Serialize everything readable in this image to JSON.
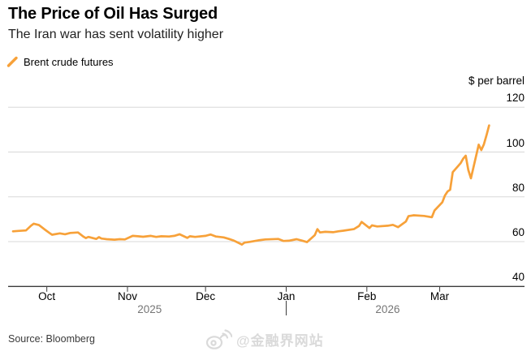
{
  "header": {
    "title": "The Price of Oil Has Surged",
    "subtitle": "The Iran war has sent volatility higher"
  },
  "legend": {
    "label": "Brent crude futures"
  },
  "axis": {
    "unit_label": "$ per barrel",
    "y_ticks": [
      40,
      60,
      80,
      100,
      120
    ],
    "x_ticks": [
      {
        "label": "Oct",
        "date": "2025-10-01"
      },
      {
        "label": "Nov",
        "date": "2025-11-01"
      },
      {
        "label": "Dec",
        "date": "2025-12-01"
      },
      {
        "label": "Jan",
        "date": "2026-01-01"
      },
      {
        "label": "Feb",
        "date": "2026-02-01"
      },
      {
        "label": "Mar",
        "date": "2026-03-01"
      }
    ],
    "years": [
      {
        "label": "2025"
      },
      {
        "label": "2026"
      }
    ]
  },
  "footer": {
    "source": "Source: Bloomberg",
    "watermark": "@金融界网站"
  },
  "colors": {
    "accent": "#F7A139",
    "gridline": "#D8D8D8",
    "axis_line": "#3C3C3C",
    "year_label": "#767676",
    "watermark": "#DADADA"
  },
  "chart_data": {
    "type": "line",
    "title": "The Price of Oil Has Surged",
    "subtitle": "The Iran war has sent volatility higher",
    "ylabel": "$ per barrel",
    "ylim": [
      40,
      120
    ],
    "grid": "horizontal",
    "legend_position": "top-left",
    "x_axis": "dates from mid-Sep 2025 to mid-Mar 2026",
    "series": [
      {
        "name": "Brent crude futures",
        "color": "#F7A139",
        "points": [
          [
            "2025-09-18",
            64.6
          ],
          [
            "2025-09-20",
            64.8
          ],
          [
            "2025-09-23",
            65.0
          ],
          [
            "2025-09-25",
            67.2
          ],
          [
            "2025-09-26",
            68.0
          ],
          [
            "2025-09-28",
            67.4
          ],
          [
            "2025-09-30",
            65.6
          ],
          [
            "2025-10-02",
            63.9
          ],
          [
            "2025-10-03",
            63.1
          ],
          [
            "2025-10-06",
            63.7
          ],
          [
            "2025-10-08",
            63.3
          ],
          [
            "2025-10-10",
            63.9
          ],
          [
            "2025-10-13",
            64.1
          ],
          [
            "2025-10-15",
            62.3
          ],
          [
            "2025-10-16",
            61.6
          ],
          [
            "2025-10-17",
            62.1
          ],
          [
            "2025-10-20",
            61.2
          ],
          [
            "2025-10-21",
            62.0
          ],
          [
            "2025-10-22",
            61.4
          ],
          [
            "2025-10-24",
            61.1
          ],
          [
            "2025-10-27",
            60.9
          ],
          [
            "2025-10-29",
            61.1
          ],
          [
            "2025-10-31",
            61.0
          ],
          [
            "2025-11-03",
            62.6
          ],
          [
            "2025-11-05",
            62.4
          ],
          [
            "2025-11-07",
            62.2
          ],
          [
            "2025-11-10",
            62.6
          ],
          [
            "2025-11-12",
            62.1
          ],
          [
            "2025-11-14",
            62.4
          ],
          [
            "2025-11-17",
            62.3
          ],
          [
            "2025-11-19",
            62.6
          ],
          [
            "2025-11-21",
            63.3
          ],
          [
            "2025-11-24",
            61.7
          ],
          [
            "2025-11-25",
            62.4
          ],
          [
            "2025-11-27",
            62.1
          ],
          [
            "2025-12-01",
            62.6
          ],
          [
            "2025-12-03",
            63.2
          ],
          [
            "2025-12-05",
            62.3
          ],
          [
            "2025-12-08",
            61.9
          ],
          [
            "2025-12-10",
            61.2
          ],
          [
            "2025-12-12",
            60.4
          ],
          [
            "2025-12-15",
            58.7
          ],
          [
            "2025-12-16",
            59.6
          ],
          [
            "2025-12-18",
            59.9
          ],
          [
            "2025-12-22",
            60.7
          ],
          [
            "2025-12-24",
            61.0
          ],
          [
            "2025-12-29",
            61.2
          ],
          [
            "2025-12-31",
            60.3
          ],
          [
            "2026-01-02",
            60.4
          ],
          [
            "2026-01-05",
            61.1
          ],
          [
            "2026-01-07",
            60.5
          ],
          [
            "2026-01-09",
            59.8
          ],
          [
            "2026-01-12",
            62.9
          ],
          [
            "2026-01-13",
            65.6
          ],
          [
            "2026-01-14",
            64.1
          ],
          [
            "2026-01-16",
            64.4
          ],
          [
            "2026-01-19",
            64.2
          ],
          [
            "2026-01-21",
            64.6
          ],
          [
            "2026-01-23",
            64.9
          ],
          [
            "2026-01-27",
            65.6
          ],
          [
            "2026-01-29",
            67.0
          ],
          [
            "2026-01-30",
            68.8
          ],
          [
            "2026-02-02",
            66.1
          ],
          [
            "2026-02-03",
            67.3
          ],
          [
            "2026-02-05",
            66.8
          ],
          [
            "2026-02-09",
            67.1
          ],
          [
            "2026-02-11",
            67.5
          ],
          [
            "2026-02-13",
            66.5
          ],
          [
            "2026-02-16",
            69.0
          ],
          [
            "2026-02-17",
            71.4
          ],
          [
            "2026-02-19",
            71.8
          ],
          [
            "2026-02-23",
            71.5
          ],
          [
            "2026-02-26",
            70.9
          ],
          [
            "2026-02-27",
            73.9
          ],
          [
            "2026-03-02",
            77.6
          ],
          [
            "2026-03-03",
            80.6
          ],
          [
            "2026-03-04",
            82.4
          ],
          [
            "2026-03-05",
            83.2
          ],
          [
            "2026-03-06",
            91.0
          ],
          [
            "2026-03-09",
            95.0
          ],
          [
            "2026-03-10",
            97.0
          ],
          [
            "2026-03-11",
            98.4
          ],
          [
            "2026-03-12",
            92.0
          ],
          [
            "2026-03-13",
            88.3
          ],
          [
            "2026-03-16",
            103.3
          ],
          [
            "2026-03-17",
            100.9
          ],
          [
            "2026-03-18",
            103.5
          ],
          [
            "2026-03-19",
            107.5
          ],
          [
            "2026-03-20",
            111.9
          ]
        ]
      }
    ]
  }
}
